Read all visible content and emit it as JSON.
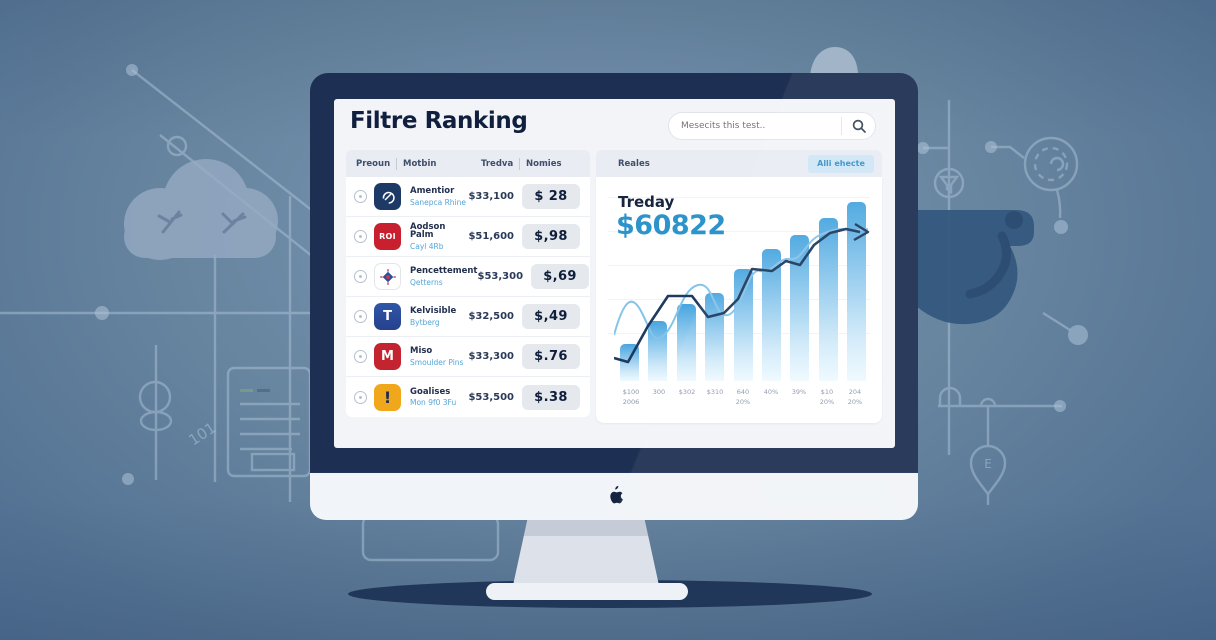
{
  "colors": {
    "accent_blue": "#2d93cb",
    "bezel_navy": "#1d2f52",
    "filter_badge_bg": "#cfe7f6",
    "pill_bg": "#e5e8ed",
    "background_blue": "#5f7fa2"
  },
  "screen": {
    "title": "Filtre Ranking",
    "search": {
      "placeholder": "Mesecits this test..",
      "icon": "search-icon"
    },
    "table": {
      "headers": [
        "Preoun",
        "Motbin",
        "Tredva",
        "Nomies"
      ],
      "rows": [
        {
          "name": "Amentior",
          "subtitle": "Sanepca Rhine",
          "value": "$33,100",
          "badge": "$ 28",
          "icon": "wave-emblem-icon",
          "icon_bg": "#1d3a66"
        },
        {
          "name": "Aodson Palm",
          "subtitle": "Cayl 4Rb",
          "value": "$51,600",
          "badge": "$,98",
          "icon": "roi-icon",
          "icon_bg": "#c8202f",
          "icon_text": "ROI"
        },
        {
          "name": "Pencettement",
          "subtitle": "Qetterns",
          "value": "$53,300",
          "badge": "$,69",
          "icon": "compass-star-icon",
          "icon_bg": "#ffffff"
        },
        {
          "name": "Kelvisible",
          "subtitle": "Bytberg",
          "value": "$32,500",
          "badge": "$,49",
          "icon": "t-badge-icon",
          "icon_bg": "#2c4f9e",
          "icon_text": "T"
        },
        {
          "name": "Miso",
          "subtitle": "Smoulder Pins",
          "value": "$33,300",
          "badge": "$.76",
          "icon": "mountain-icon",
          "icon_bg": "#c4242f",
          "icon_text": "M"
        },
        {
          "name": "Goalises",
          "subtitle": "Mon 9f0 3Fu",
          "value": "$53,500",
          "badge": "$.38",
          "icon": "exclamation-icon",
          "icon_bg": "#f0a71c",
          "icon_text": "!"
        }
      ]
    },
    "panel": {
      "label": "Reales",
      "filter_badge": "Alli ehecte"
    }
  },
  "chart_data": {
    "type": "bar",
    "title": "Treday",
    "total_value": "$60822",
    "categories": [
      "$100",
      "300",
      "$302",
      "$310",
      "640",
      "40%",
      "39%",
      "$10",
      "204"
    ],
    "sub_labels": [
      "2006",
      "",
      "",
      "",
      "20%",
      "",
      "",
      "20%",
      "20%"
    ],
    "values": [
      20,
      33,
      42,
      48,
      61,
      72,
      80,
      89,
      98
    ],
    "ylim": [
      0,
      100
    ],
    "grid": true,
    "legend": false,
    "lines": [
      {
        "name": "trend-dark",
        "color": "#1f3a5f"
      },
      {
        "name": "trend-light",
        "color": "#85c4ea"
      }
    ]
  }
}
